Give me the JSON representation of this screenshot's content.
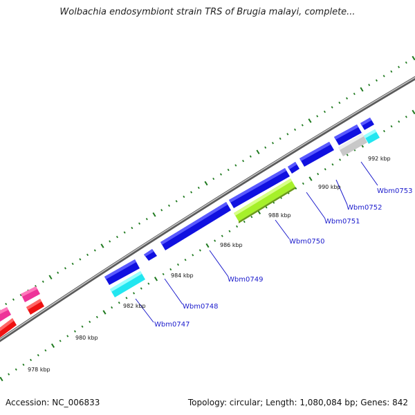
{
  "title": "Wolbachia endosymbiont strain TRS of Brugia malayi, complete...",
  "footer": {
    "accession": "Accession: NC_006833",
    "stats": "Topology: circular; Length: 1,080,084 bp; Genes: 842"
  },
  "colors": {
    "background": "#ffffff",
    "backbone": "#888888",
    "tick": "#1f7a1f",
    "label": "#1a1acc"
  },
  "kbp_labels": [
    "978 kbp",
    "980 kbp",
    "982 kbp",
    "984 kbp",
    "986 kbp",
    "988 kbp",
    "990 kbp",
    "992 kbp"
  ],
  "gene_labels": [
    "Wbm0747",
    "Wbm0748",
    "Wbm0749",
    "Wbm0750",
    "Wbm0751",
    "Wbm0752",
    "Wbm0753"
  ],
  "gene_colors": {
    "blue": "#1010e0",
    "cyan": "#22e6f0",
    "green": "#a6f02a",
    "grey": "#c8c8c8",
    "pink": "#ee3399",
    "red": "#ee1111"
  }
}
